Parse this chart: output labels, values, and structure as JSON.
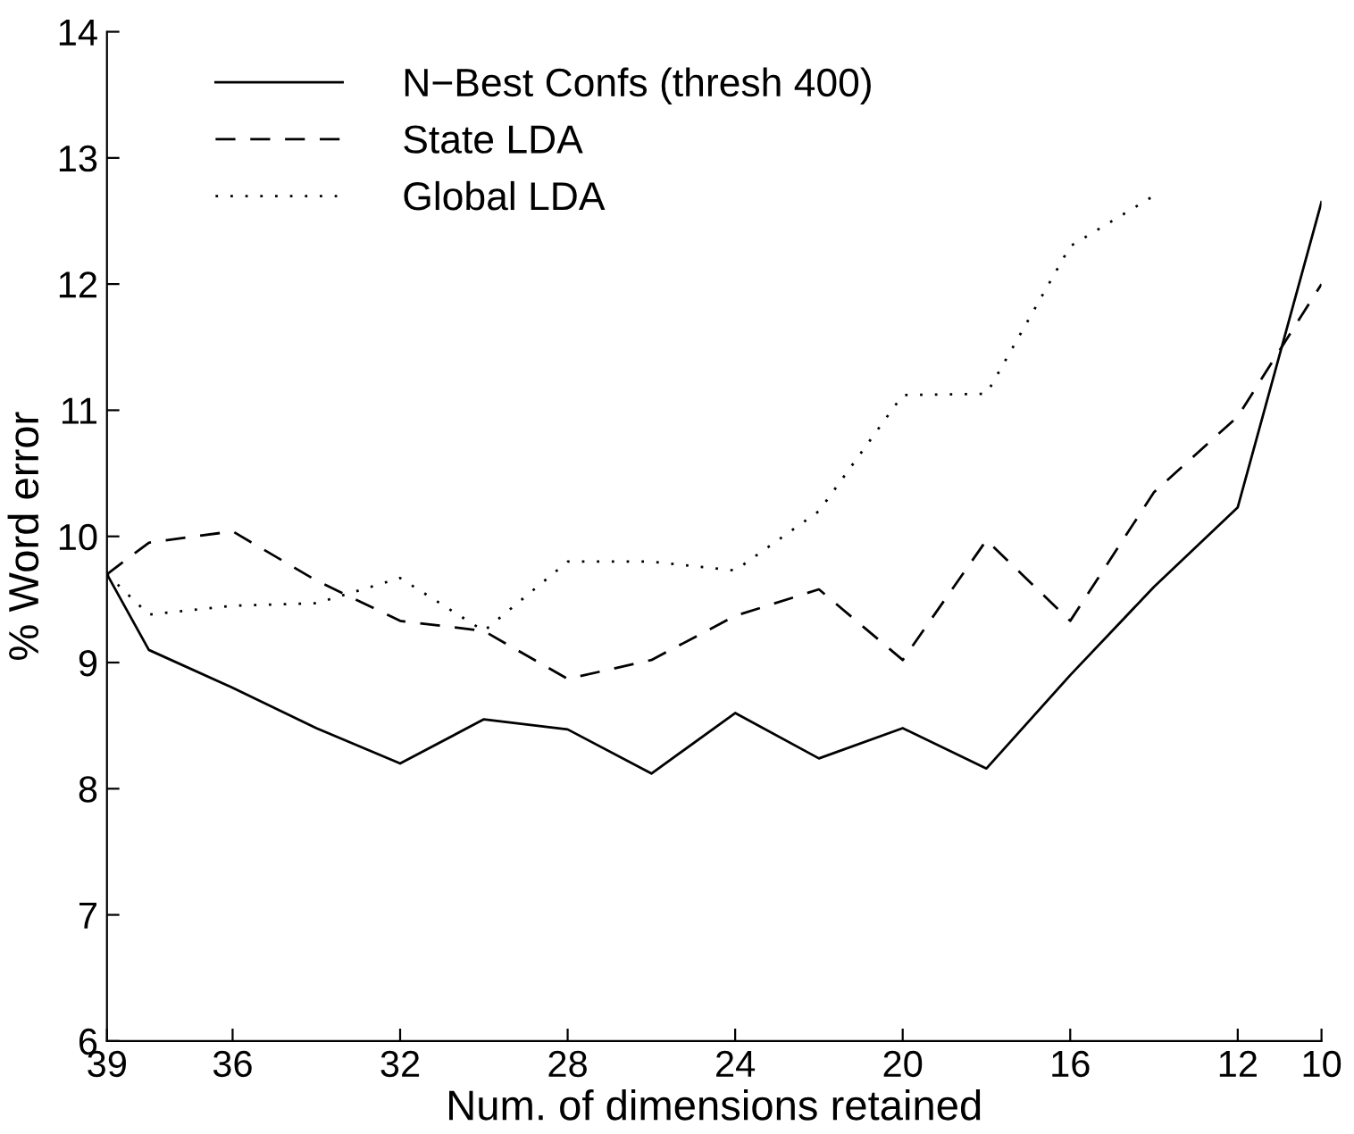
{
  "chart_data": {
    "type": "line",
    "xlabel": "Num. of dimensions retained",
    "ylabel": "% Word error",
    "x": [
      39,
      38,
      36,
      34,
      32,
      30,
      28,
      26,
      24,
      22,
      20,
      18,
      16,
      14,
      12,
      10
    ],
    "xlim": [
      39,
      10
    ],
    "xticks": [
      39,
      36,
      32,
      28,
      24,
      20,
      16,
      12,
      10
    ],
    "ylim": [
      6,
      14
    ],
    "yticks": [
      6,
      7,
      8,
      9,
      10,
      11,
      12,
      13,
      14
    ],
    "grid": false,
    "legend": "top left",
    "series": [
      {
        "name": "N−Best Confs (thresh 400)",
        "color": "#000000",
        "line_style": "solid",
        "values": [
          9.7,
          9.1,
          8.8,
          8.48,
          8.2,
          8.55,
          8.47,
          8.12,
          8.6,
          8.24,
          8.48,
          8.16,
          8.9,
          9.6,
          10.23,
          12.65
        ]
      },
      {
        "name": "State LDA",
        "color": "#000000",
        "line_style": "dashed",
        "values": [
          9.7,
          9.95,
          10.04,
          9.65,
          9.33,
          9.25,
          8.87,
          9.02,
          9.37,
          9.58,
          9.02,
          9.97,
          9.33,
          10.35,
          10.95,
          12.0
        ]
      },
      {
        "name": "Global LDA",
        "color": "#000000",
        "line_style": "dotted",
        "values": [
          9.7,
          9.38,
          9.45,
          9.47,
          9.67,
          9.25,
          9.8,
          9.8,
          9.73,
          10.2,
          11.12,
          11.13,
          12.3,
          12.7,
          null,
          null
        ]
      }
    ]
  }
}
